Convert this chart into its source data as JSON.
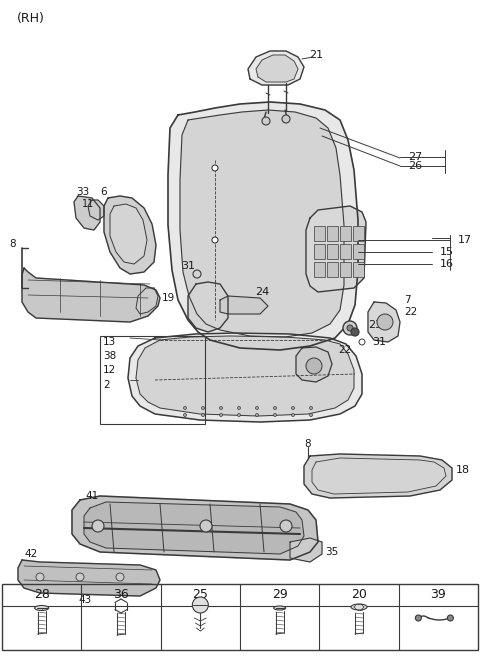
{
  "title": "(RH)",
  "bg_color": "#ffffff",
  "line_color": "#3a3a3a",
  "text_color": "#1a1a1a",
  "fig_width": 4.8,
  "fig_height": 6.56,
  "dpi": 100,
  "table_labels": [
    "28",
    "36",
    "25",
    "29",
    "20",
    "39"
  ],
  "seat_color": "#e8e8e8",
  "seat_inner_color": "#d4d4d4",
  "metal_color": "#cccccc",
  "dark_color": "#888888"
}
